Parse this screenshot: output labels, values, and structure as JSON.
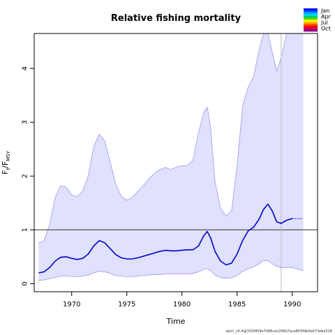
{
  "chart_data": {
    "type": "area",
    "title": "Relative fishing mortality",
    "xlabel": "Time",
    "ylabel": {
      "main": "F",
      "sub1": "t",
      "sep": "/F",
      "sub2": "MSY"
    },
    "xlim": [
      1966.6,
      1992.3
    ],
    "ylim": [
      -0.15,
      4.65
    ],
    "xticks": [
      1970,
      1975,
      1980,
      1985,
      1990
    ],
    "yticks": [
      0,
      1,
      2,
      3,
      4
    ],
    "reference_line": 1,
    "vertical_line_x": 1989,
    "colors": {
      "band_fill": "#e0e0ff",
      "band_edge": "#9a9aee",
      "estimate": "#0000cc",
      "reference": "#555555",
      "vline": "#bbbbbb"
    },
    "series": [
      {
        "role": "estimate",
        "x": [
          1967.0,
          1967.5,
          1968.0,
          1968.5,
          1969.0,
          1969.5,
          1970.0,
          1970.5,
          1971.0,
          1971.5,
          1972.0,
          1972.5,
          1973.0,
          1973.5,
          1974.0,
          1974.5,
          1975.0,
          1975.5,
          1976.0,
          1976.5,
          1977.0,
          1977.5,
          1978.0,
          1978.5,
          1979.0,
          1979.5,
          1980.0,
          1980.5,
          1981.0,
          1981.5,
          1982.0,
          1982.3,
          1982.6,
          1983.0,
          1983.5,
          1984.0,
          1984.5,
          1985.0,
          1985.5,
          1986.0,
          1986.5,
          1987.0,
          1987.4,
          1987.8,
          1988.2,
          1988.6,
          1989.0,
          1989.5,
          1990.0
        ],
        "y": [
          0.2,
          0.22,
          0.3,
          0.42,
          0.49,
          0.5,
          0.47,
          0.45,
          0.47,
          0.55,
          0.7,
          0.8,
          0.76,
          0.65,
          0.54,
          0.48,
          0.46,
          0.46,
          0.48,
          0.51,
          0.54,
          0.57,
          0.6,
          0.62,
          0.61,
          0.61,
          0.62,
          0.63,
          0.63,
          0.7,
          0.9,
          0.97,
          0.85,
          0.6,
          0.42,
          0.35,
          0.38,
          0.55,
          0.8,
          0.98,
          1.05,
          1.2,
          1.38,
          1.48,
          1.35,
          1.15,
          1.12,
          1.18,
          1.21
        ]
      },
      {
        "role": "forecast",
        "x": [
          1990.0,
          1991.0
        ],
        "y": [
          1.21,
          1.21
        ]
      },
      {
        "role": "upper",
        "x": [
          1967.0,
          1967.5,
          1968.0,
          1968.5,
          1969.0,
          1969.5,
          1970.0,
          1970.5,
          1971.0,
          1971.5,
          1972.0,
          1972.5,
          1973.0,
          1973.5,
          1974.0,
          1974.5,
          1975.0,
          1975.5,
          1976.0,
          1976.5,
          1977.0,
          1977.5,
          1978.0,
          1978.5,
          1979.0,
          1979.5,
          1980.0,
          1980.5,
          1981.0,
          1981.5,
          1982.0,
          1982.3,
          1982.6,
          1983.0,
          1983.5,
          1984.0,
          1984.5,
          1985.0,
          1985.5,
          1986.0,
          1986.5,
          1987.0,
          1987.4,
          1987.8,
          1988.2,
          1988.6,
          1989.0,
          1989.5,
          1990.0,
          1990.5,
          1991.0
        ],
        "y": [
          0.75,
          0.8,
          1.1,
          1.6,
          1.82,
          1.8,
          1.65,
          1.62,
          1.72,
          2.0,
          2.55,
          2.78,
          2.65,
          2.25,
          1.85,
          1.62,
          1.55,
          1.6,
          1.72,
          1.82,
          1.95,
          2.05,
          2.12,
          2.16,
          2.12,
          2.17,
          2.19,
          2.2,
          2.3,
          2.8,
          3.2,
          3.28,
          2.9,
          1.9,
          1.4,
          1.26,
          1.35,
          2.2,
          3.3,
          3.65,
          3.85,
          4.35,
          4.65,
          4.65,
          4.3,
          3.95,
          4.2,
          4.65,
          4.65,
          4.65,
          4.65
        ]
      },
      {
        "role": "lower",
        "x": [
          1967.0,
          1967.5,
          1968.0,
          1968.5,
          1969.0,
          1969.5,
          1970.0,
          1970.5,
          1971.0,
          1971.5,
          1972.0,
          1972.5,
          1973.0,
          1973.5,
          1974.0,
          1974.5,
          1975.0,
          1975.5,
          1976.0,
          1976.5,
          1977.0,
          1977.5,
          1978.0,
          1978.5,
          1979.0,
          1979.5,
          1980.0,
          1980.5,
          1981.0,
          1981.5,
          1982.0,
          1982.3,
          1982.6,
          1983.0,
          1983.5,
          1984.0,
          1984.5,
          1985.0,
          1985.5,
          1986.0,
          1986.5,
          1987.0,
          1987.4,
          1987.8,
          1988.2,
          1988.6,
          1989.0,
          1989.5,
          1990.0,
          1990.5,
          1991.0
        ],
        "y": [
          0.06,
          0.07,
          0.09,
          0.12,
          0.14,
          0.14,
          0.13,
          0.13,
          0.14,
          0.16,
          0.2,
          0.23,
          0.22,
          0.19,
          0.15,
          0.14,
          0.13,
          0.13,
          0.14,
          0.15,
          0.16,
          0.17,
          0.17,
          0.18,
          0.18,
          0.18,
          0.18,
          0.18,
          0.19,
          0.22,
          0.27,
          0.28,
          0.24,
          0.16,
          0.11,
          0.1,
          0.11,
          0.15,
          0.23,
          0.28,
          0.31,
          0.37,
          0.43,
          0.43,
          0.37,
          0.32,
          0.3,
          0.3,
          0.3,
          0.27,
          0.24
        ]
      }
    ],
    "legend": {
      "placement": "top-right",
      "labels": [
        "Jan",
        "Apr",
        "Jul",
        "Oct"
      ],
      "swatches": [
        "#0000ff",
        "#0055ff",
        "#00aaff",
        "#00dddd",
        "#00cc66",
        "#66dd00",
        "#ffff00",
        "#ffaa00",
        "#ff5500",
        "#ff0000",
        "#cc0055",
        "#880088"
      ]
    }
  },
  "footer": "spict_v0.4@332f459e7d96cec206b7aca803fdb0eb73eba526"
}
